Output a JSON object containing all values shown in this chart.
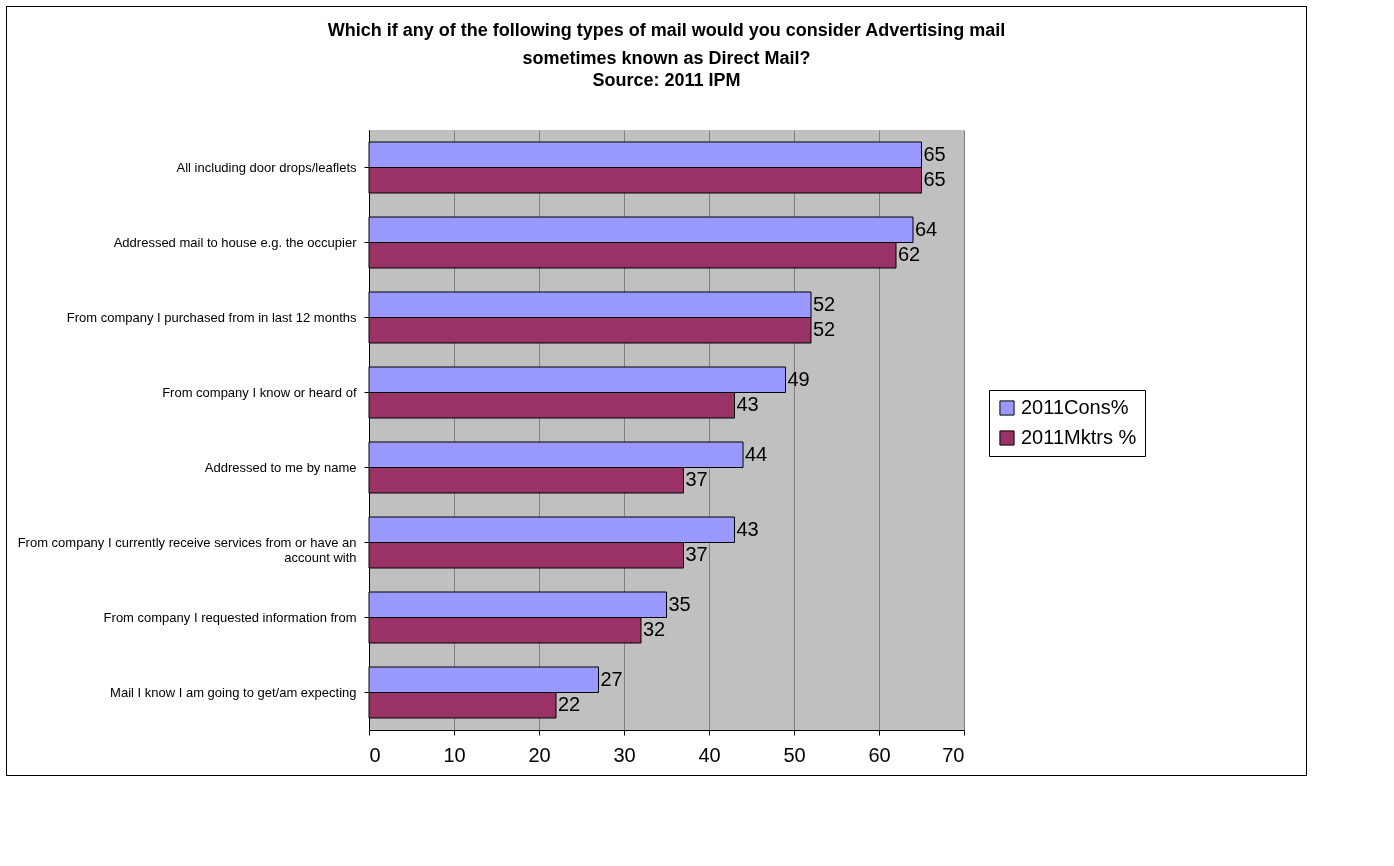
{
  "chart_data": {
    "type": "bar",
    "orientation": "horizontal",
    "title": "Which if any of the following types of mail would you consider Advertising mail sometimes known as Direct Mail?",
    "subtitle": "Source: 2011 IPM",
    "categories": [
      "All including door drops/leaflets",
      "Addressed mail to house e.g. the occupier",
      "From company I purchased from in last 12 months",
      "From company I know  or heard of",
      "Addressed to me by name",
      "From company I currently receive services from or have an account with",
      "From company I requested information from",
      "Mail I know  I am going to get/am expecting"
    ],
    "series": [
      {
        "name": "2011Cons%",
        "color": "#9999ff",
        "values": [
          65,
          64,
          52,
          49,
          44,
          43,
          35,
          27
        ]
      },
      {
        "name": "2011Mktrs %",
        "color": "#993366",
        "values": [
          65,
          62,
          52,
          43,
          37,
          37,
          32,
          22
        ]
      }
    ],
    "xlim": [
      0,
      70
    ],
    "xticks": [
      0,
      10,
      20,
      30,
      40,
      50,
      60,
      70
    ],
    "grid": "x",
    "legend": "right",
    "data_labels": true
  }
}
